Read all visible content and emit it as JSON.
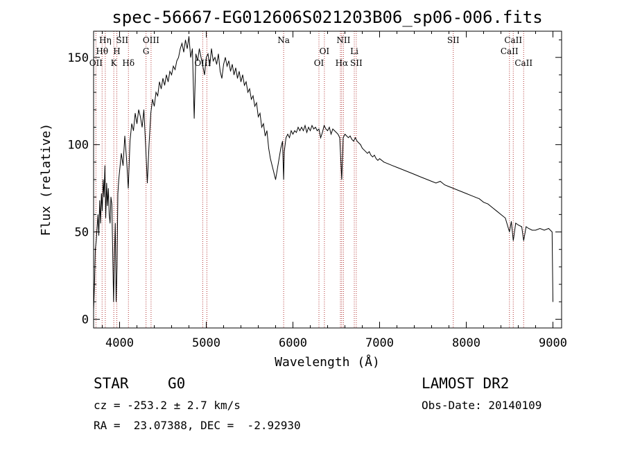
{
  "chart_data": {
    "type": "line",
    "title": "spec-56667-EG012606S021203B06_sp06-006.fits",
    "xlabel": "Wavelength (Å)",
    "ylabel": "Flux (relative)",
    "xlim": [
      3700,
      9100
    ],
    "ylim": [
      -5,
      165
    ],
    "x_ticks": [
      4000,
      5000,
      6000,
      7000,
      8000,
      9000
    ],
    "y_ticks": [
      0,
      50,
      100,
      150
    ],
    "grid": false,
    "series": [
      {
        "line_color": "#000000",
        "points": [
          [
            3700,
            5
          ],
          [
            3710,
            20
          ],
          [
            3720,
            40
          ],
          [
            3730,
            45
          ],
          [
            3740,
            52
          ],
          [
            3750,
            60
          ],
          [
            3760,
            48
          ],
          [
            3770,
            68
          ],
          [
            3780,
            55
          ],
          [
            3790,
            72
          ],
          [
            3800,
            62
          ],
          [
            3810,
            80
          ],
          [
            3820,
            70
          ],
          [
            3830,
            88
          ],
          [
            3840,
            58
          ],
          [
            3850,
            78
          ],
          [
            3860,
            65
          ],
          [
            3870,
            75
          ],
          [
            3880,
            60
          ],
          [
            3890,
            55
          ],
          [
            3900,
            70
          ],
          [
            3910,
            66
          ],
          [
            3920,
            40
          ],
          [
            3930,
            10
          ],
          [
            3940,
            35
          ],
          [
            3950,
            55
          ],
          [
            3960,
            10
          ],
          [
            3970,
            30
          ],
          [
            3980,
            72
          ],
          [
            3990,
            80
          ],
          [
            4000,
            85
          ],
          [
            4020,
            95
          ],
          [
            4040,
            88
          ],
          [
            4060,
            105
          ],
          [
            4080,
            92
          ],
          [
            4100,
            75
          ],
          [
            4120,
            102
          ],
          [
            4140,
            112
          ],
          [
            4160,
            108
          ],
          [
            4180,
            118
          ],
          [
            4200,
            112
          ],
          [
            4220,
            120
          ],
          [
            4240,
            116
          ],
          [
            4260,
            110
          ],
          [
            4280,
            120
          ],
          [
            4300,
            100
          ],
          [
            4320,
            78
          ],
          [
            4340,
            100
          ],
          [
            4360,
            118
          ],
          [
            4380,
            126
          ],
          [
            4400,
            122
          ],
          [
            4420,
            130
          ],
          [
            4440,
            128
          ],
          [
            4460,
            136
          ],
          [
            4480,
            132
          ],
          [
            4500,
            138
          ],
          [
            4520,
            134
          ],
          [
            4540,
            140
          ],
          [
            4560,
            136
          ],
          [
            4580,
            142
          ],
          [
            4600,
            140
          ],
          [
            4620,
            145
          ],
          [
            4640,
            143
          ],
          [
            4660,
            148
          ],
          [
            4680,
            150
          ],
          [
            4700,
            155
          ],
          [
            4720,
            158
          ],
          [
            4740,
            153
          ],
          [
            4760,
            160
          ],
          [
            4780,
            155
          ],
          [
            4800,
            162
          ],
          [
            4820,
            150
          ],
          [
            4840,
            155
          ],
          [
            4861,
            115
          ],
          [
            4880,
            152
          ],
          [
            4900,
            148
          ],
          [
            4920,
            155
          ],
          [
            4940,
            150
          ],
          [
            4960,
            145
          ],
          [
            4980,
            140
          ],
          [
            5000,
            150
          ],
          [
            5020,
            152
          ],
          [
            5040,
            145
          ],
          [
            5060,
            155
          ],
          [
            5080,
            148
          ],
          [
            5100,
            150
          ],
          [
            5120,
            146
          ],
          [
            5140,
            152
          ],
          [
            5160,
            142
          ],
          [
            5180,
            138
          ],
          [
            5200,
            146
          ],
          [
            5220,
            150
          ],
          [
            5240,
            145
          ],
          [
            5260,
            148
          ],
          [
            5280,
            142
          ],
          [
            5300,
            146
          ],
          [
            5320,
            140
          ],
          [
            5340,
            144
          ],
          [
            5360,
            138
          ],
          [
            5380,
            142
          ],
          [
            5400,
            136
          ],
          [
            5420,
            140
          ],
          [
            5440,
            134
          ],
          [
            5460,
            136
          ],
          [
            5480,
            130
          ],
          [
            5500,
            132
          ],
          [
            5520,
            126
          ],
          [
            5540,
            128
          ],
          [
            5560,
            122
          ],
          [
            5580,
            124
          ],
          [
            5600,
            116
          ],
          [
            5620,
            118
          ],
          [
            5640,
            110
          ],
          [
            5660,
            112
          ],
          [
            5680,
            105
          ],
          [
            5700,
            108
          ],
          [
            5720,
            98
          ],
          [
            5740,
            92
          ],
          [
            5760,
            88
          ],
          [
            5780,
            84
          ],
          [
            5800,
            80
          ],
          [
            5820,
            86
          ],
          [
            5840,
            92
          ],
          [
            5860,
            98
          ],
          [
            5880,
            102
          ],
          [
            5893,
            80
          ],
          [
            5900,
            96
          ],
          [
            5920,
            104
          ],
          [
            5940,
            106
          ],
          [
            5960,
            104
          ],
          [
            5980,
            108
          ],
          [
            6000,
            106
          ],
          [
            6020,
            108
          ],
          [
            6040,
            107
          ],
          [
            6060,
            110
          ],
          [
            6080,
            108
          ],
          [
            6100,
            110
          ],
          [
            6120,
            108
          ],
          [
            6140,
            111
          ],
          [
            6160,
            107
          ],
          [
            6180,
            110
          ],
          [
            6200,
            108
          ],
          [
            6220,
            111
          ],
          [
            6240,
            109
          ],
          [
            6260,
            110
          ],
          [
            6280,
            108
          ],
          [
            6300,
            109
          ],
          [
            6320,
            104
          ],
          [
            6340,
            107
          ],
          [
            6360,
            111
          ],
          [
            6380,
            109
          ],
          [
            6400,
            108
          ],
          [
            6420,
            110
          ],
          [
            6440,
            106
          ],
          [
            6460,
            109
          ],
          [
            6480,
            108
          ],
          [
            6500,
            107
          ],
          [
            6520,
            106
          ],
          [
            6540,
            104
          ],
          [
            6563,
            80
          ],
          [
            6580,
            104
          ],
          [
            6600,
            106
          ],
          [
            6620,
            105
          ],
          [
            6640,
            104
          ],
          [
            6660,
            105
          ],
          [
            6680,
            103
          ],
          [
            6700,
            102
          ],
          [
            6720,
            104
          ],
          [
            6740,
            102
          ],
          [
            6760,
            101
          ],
          [
            6780,
            100
          ],
          [
            6800,
            98
          ],
          [
            6820,
            97
          ],
          [
            6840,
            96
          ],
          [
            6860,
            95
          ],
          [
            6880,
            96
          ],
          [
            6900,
            94
          ],
          [
            6920,
            93
          ],
          [
            6940,
            94
          ],
          [
            6960,
            92
          ],
          [
            6980,
            91
          ],
          [
            7000,
            92
          ],
          [
            7050,
            90
          ],
          [
            7100,
            89
          ],
          [
            7150,
            88
          ],
          [
            7200,
            87
          ],
          [
            7250,
            86
          ],
          [
            7300,
            85
          ],
          [
            7350,
            84
          ],
          [
            7400,
            83
          ],
          [
            7450,
            82
          ],
          [
            7500,
            81
          ],
          [
            7550,
            80
          ],
          [
            7600,
            79
          ],
          [
            7650,
            78
          ],
          [
            7700,
            79
          ],
          [
            7750,
            77
          ],
          [
            7800,
            76
          ],
          [
            7850,
            75
          ],
          [
            7900,
            74
          ],
          [
            7950,
            73
          ],
          [
            8000,
            72
          ],
          [
            8050,
            71
          ],
          [
            8100,
            70
          ],
          [
            8150,
            69
          ],
          [
            8200,
            67
          ],
          [
            8250,
            66
          ],
          [
            8300,
            64
          ],
          [
            8350,
            62
          ],
          [
            8400,
            60
          ],
          [
            8450,
            58
          ],
          [
            8498,
            50
          ],
          [
            8520,
            56
          ],
          [
            8542,
            45
          ],
          [
            8570,
            55
          ],
          [
            8600,
            54
          ],
          [
            8640,
            53
          ],
          [
            8662,
            45
          ],
          [
            8690,
            53
          ],
          [
            8720,
            52
          ],
          [
            8760,
            51
          ],
          [
            8800,
            51
          ],
          [
            8850,
            52
          ],
          [
            8900,
            51
          ],
          [
            8950,
            52
          ],
          [
            8990,
            50
          ],
          [
            9000,
            10
          ]
        ]
      }
    ],
    "line_annotations": [
      {
        "label": "Hη",
        "x": 3835,
        "row": 0
      },
      {
        "label": "SII",
        "x": 4030,
        "row": 0
      },
      {
        "label": "OIII",
        "x": 4363,
        "row": 0
      },
      {
        "label": "Na",
        "x": 5893,
        "row": 0
      },
      {
        "label": "NII",
        "x": 6583,
        "row": 0
      },
      {
        "label": "SII",
        "x": 7850,
        "row": 0
      },
      {
        "label": "CaII",
        "x": 8542,
        "row": 0
      },
      {
        "label": "Hθ",
        "x": 3798,
        "row": 1
      },
      {
        "label": "H",
        "x": 3968,
        "row": 1
      },
      {
        "label": "G",
        "x": 4305,
        "row": 1
      },
      {
        "label": "OI",
        "x": 6363,
        "row": 1
      },
      {
        "label": "Li",
        "x": 6708,
        "row": 1
      },
      {
        "label": "CaII",
        "x": 8498,
        "row": 1
      },
      {
        "label": "OII",
        "x": 3727,
        "row": 2
      },
      {
        "label": "K",
        "x": 3933,
        "row": 2
      },
      {
        "label": "Hδ",
        "x": 4102,
        "row": 2
      },
      {
        "label": "OIII",
        "x": 4959,
        "row": 2
      },
      {
        "label": "OI",
        "x": 6300,
        "row": 2
      },
      {
        "label": "Hα",
        "x": 6563,
        "row": 2
      },
      {
        "label": "SII",
        "x": 6731,
        "row": 2
      },
      {
        "label": "CaII",
        "x": 8662,
        "row": 2
      }
    ],
    "marker_lines": [
      3727,
      3798,
      3835,
      3933,
      3968,
      4102,
      4305,
      4363,
      4959,
      5007,
      5893,
      6300,
      6363,
      6548,
      6563,
      6583,
      6708,
      6731,
      7850,
      8498,
      8542,
      8662
    ],
    "colors": {
      "axes": "#000000",
      "spectrum": "#000000",
      "marker_lines": "#b03030"
    }
  },
  "info": {
    "class": "STAR",
    "subclass": "G0",
    "survey": "LAMOST DR2",
    "cz": "cz = -253.2 ± 2.7 km/s",
    "obs_date": "Obs-Date: 20140109",
    "coords": "RA =  23.07388, DEC =  -2.92930"
  }
}
